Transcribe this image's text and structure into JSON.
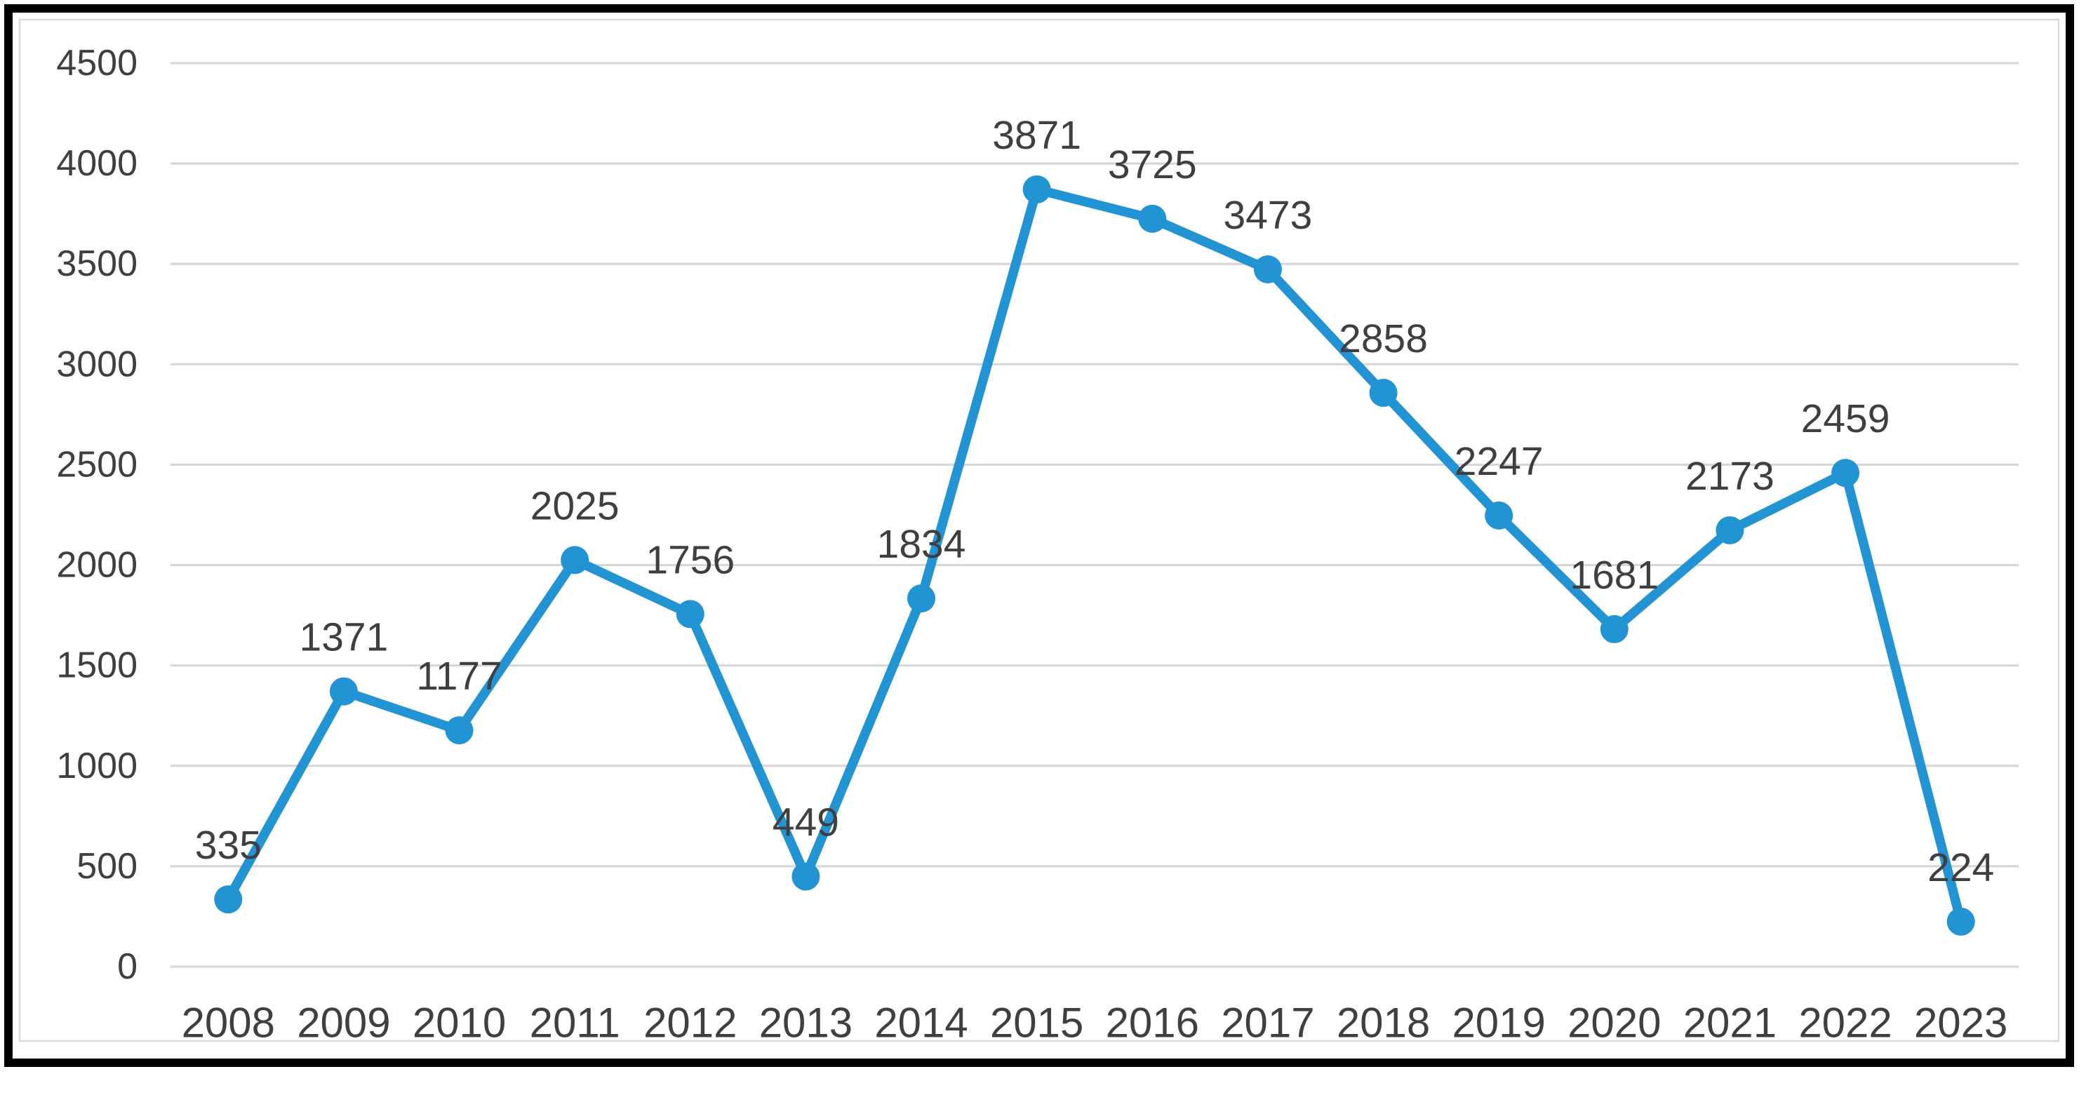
{
  "chart_data": {
    "type": "line",
    "title": "",
    "xlabel": "",
    "ylabel": "",
    "categories": [
      "2008",
      "2009",
      "2010",
      "2011",
      "2012",
      "2013",
      "2014",
      "2015",
      "2016",
      "2017",
      "2018",
      "2019",
      "2020",
      "2021",
      "2022",
      "2023"
    ],
    "values": [
      335,
      1371,
      1177,
      2025,
      1756,
      449,
      1834,
      3871,
      3725,
      3473,
      2858,
      2247,
      1681,
      2173,
      2459,
      224
    ],
    "data_labels": [
      "335",
      "1371",
      "1177",
      "2025",
      "1756",
      "449",
      "1834",
      "3871",
      "3725",
      "3473",
      "2858",
      "2247",
      "1681",
      "2173",
      "2459",
      "224"
    ],
    "y_ticks": [
      "0",
      "500",
      "1000",
      "1500",
      "2000",
      "2500",
      "3000",
      "3500",
      "4000",
      "4500"
    ],
    "ylim": [
      0,
      4500
    ],
    "grid": true,
    "legend": "none",
    "marker": "circle",
    "colors": {
      "line": "#2293d3",
      "marker": "#2293d3",
      "gridline": "#d6d6d6",
      "tick_text": "#3f3f3f",
      "data_label_text": "#3f3f3f",
      "chart_border": "#d9d9d9",
      "picture_border": "#000000",
      "background": "#ffffff"
    }
  }
}
